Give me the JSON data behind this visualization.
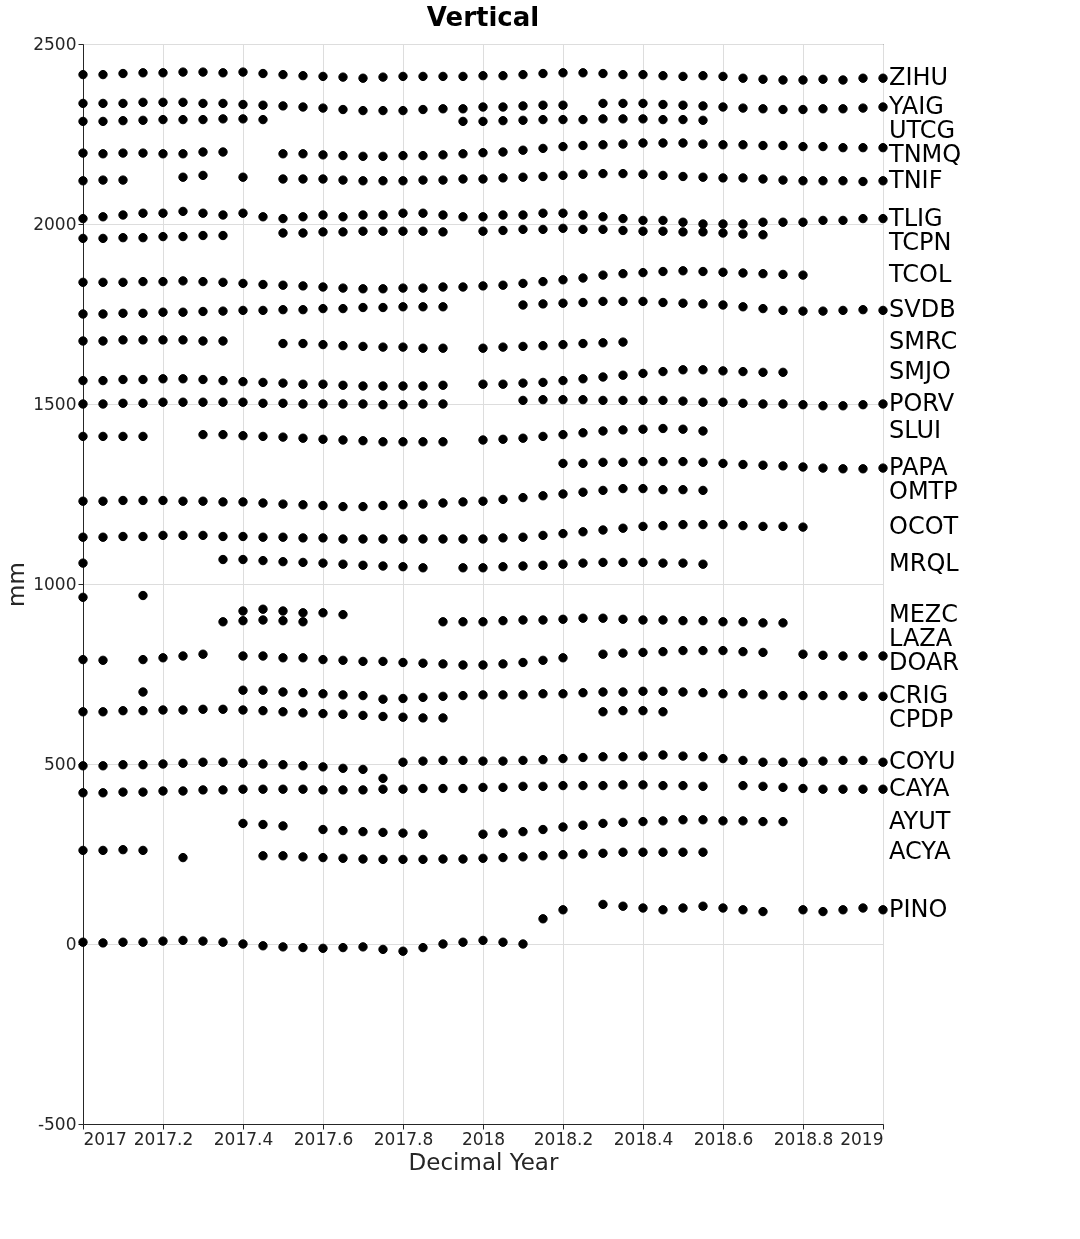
{
  "chart_data": {
    "type": "scatter",
    "title": "Vertical",
    "xlabel": "Decimal Year",
    "ylabel": "mm",
    "marker": "circle",
    "grid": true,
    "xlim": [
      2017,
      2019
    ],
    "xticks": [
      2017,
      2017.2,
      2017.4,
      2017.6,
      2017.8,
      2018,
      2018.2,
      2018.4,
      2018.6,
      2018.8,
      2019
    ],
    "ylim": [
      -500,
      2500
    ],
    "yticks": [
      -500,
      0,
      500,
      1000,
      1500,
      2000,
      2500
    ],
    "x": [
      2017.0,
      2017.05,
      2017.1,
      2017.15,
      2017.2,
      2017.25,
      2017.3,
      2017.35,
      2017.4,
      2017.45,
      2017.5,
      2017.55,
      2017.6,
      2017.65,
      2017.7,
      2017.75,
      2017.8,
      2017.85,
      2017.9,
      2017.95,
      2018.0,
      2018.05,
      2018.1,
      2018.15,
      2018.2,
      2018.25,
      2018.3,
      2018.35,
      2018.4,
      2018.45,
      2018.5,
      2018.55,
      2018.6,
      2018.65,
      2018.7,
      2018.75,
      2018.8,
      2018.85,
      2018.9,
      2018.95,
      2019.0
    ],
    "series": [
      {
        "name": "ZIHU",
        "color": "#000000",
        "values": [
          2415,
          2415,
          2418,
          2420,
          2420,
          2422,
          2422,
          2420,
          2422,
          2418,
          2415,
          2412,
          2410,
          2408,
          2405,
          2408,
          2410,
          2410,
          2410,
          2410,
          2412,
          2412,
          2415,
          2418,
          2420,
          2420,
          2418,
          2415,
          2415,
          2412,
          2410,
          2412,
          2410,
          2405,
          2402,
          2400,
          2400,
          2402,
          2400,
          2405,
          2405
        ]
      },
      {
        "name": "YAIG",
        "color": "#000000",
        "values": [
          2335,
          2335,
          2335,
          2338,
          2338,
          2338,
          2335,
          2335,
          2332,
          2330,
          2328,
          2325,
          2322,
          2318,
          2315,
          2315,
          2315,
          2318,
          2320,
          2320,
          2325,
          2325,
          2328,
          2330,
          2330,
          null,
          2335,
          2335,
          2335,
          2332,
          2330,
          2328,
          2325,
          2322,
          2320,
          2318,
          2318,
          2320,
          2320,
          2322,
          2325
        ]
      },
      {
        "name": "UTCG",
        "color": "#000000",
        "values": [
          2285,
          2285,
          2287,
          2288,
          2290,
          2290,
          2290,
          2292,
          2292,
          2290,
          null,
          null,
          null,
          null,
          null,
          null,
          null,
          null,
          null,
          2285,
          2285,
          2287,
          2288,
          2290,
          2290,
          2290,
          2292,
          2292,
          2292,
          2290,
          2290,
          2288,
          null,
          null,
          null,
          null,
          null,
          null,
          null,
          null,
          null
        ]
      },
      {
        "name": "TNMQ",
        "color": "#000000",
        "values": [
          2197,
          2195,
          2197,
          2197,
          2195,
          2195,
          2200,
          2200,
          null,
          null,
          2195,
          2195,
          2192,
          2190,
          2188,
          2188,
          2190,
          2190,
          2192,
          2195,
          2198,
          2200,
          2205,
          2210,
          2215,
          2218,
          2220,
          2222,
          2225,
          2225,
          2225,
          2222,
          2220,
          2220,
          2218,
          2218,
          2215,
          2215,
          2212,
          2212,
          2212
        ]
      },
      {
        "name": "TNIF",
        "color": "#000000",
        "values": [
          2120,
          2122,
          2122,
          null,
          null,
          2130,
          2135,
          null,
          2130,
          null,
          2125,
          2125,
          2125,
          2122,
          2120,
          2120,
          2120,
          2122,
          2122,
          2125,
          2125,
          2128,
          2130,
          2132,
          2135,
          2138,
          2140,
          2140,
          2138,
          2135,
          2132,
          2130,
          2128,
          2128,
          2125,
          2122,
          2120,
          2120,
          2120,
          2118,
          2120
        ]
      },
      {
        "name": "TLIG",
        "color": "#000000",
        "values": [
          2015,
          2020,
          2025,
          2030,
          2030,
          2035,
          2030,
          2025,
          2030,
          2020,
          2015,
          2020,
          2025,
          2020,
          2025,
          2025,
          2030,
          2030,
          2025,
          2020,
          2020,
          2025,
          2025,
          2030,
          2030,
          2025,
          2020,
          2015,
          2010,
          2010,
          2005,
          2000,
          2000,
          2000,
          2005,
          2005,
          2005,
          2010,
          2010,
          2015,
          2015
        ]
      },
      {
        "name": "TCPN",
        "color": "#000000",
        "values": [
          1960,
          1960,
          1962,
          1962,
          1965,
          1965,
          1968,
          1968,
          null,
          null,
          1975,
          1975,
          1978,
          1978,
          1980,
          1980,
          1980,
          1980,
          1978,
          null,
          1980,
          1982,
          1985,
          1985,
          1988,
          1985,
          1985,
          1982,
          1980,
          1980,
          1978,
          1978,
          1975,
          1972,
          1970,
          null,
          null,
          null,
          null,
          null,
          null
        ]
      },
      {
        "name": "TCOL",
        "color": "#000000",
        "values": [
          1838,
          1838,
          1838,
          1840,
          1840,
          1842,
          1840,
          1838,
          1835,
          1832,
          1830,
          1828,
          1825,
          1822,
          1820,
          1820,
          1822,
          1822,
          1825,
          1825,
          1828,
          1830,
          1835,
          1840,
          1845,
          1850,
          1858,
          1862,
          1865,
          1868,
          1870,
          1868,
          1866,
          1864,
          1862,
          1860,
          1858,
          null,
          null,
          null,
          null
        ]
      },
      {
        "name": "SVDB",
        "color": "#000000",
        "values": [
          1750,
          1750,
          1752,
          1752,
          1755,
          1755,
          1757,
          1758,
          1760,
          1760,
          1762,
          1762,
          1765,
          1765,
          1768,
          1768,
          1770,
          1770,
          1770,
          null,
          null,
          null,
          1775,
          1778,
          1780,
          1782,
          1785,
          1785,
          1785,
          1782,
          1780,
          1778,
          1775,
          1770,
          1765,
          1760,
          1758,
          1758,
          1760,
          1762,
          1760
        ]
      },
      {
        "name": "SMRC",
        "color": "#000000",
        "values": [
          1675,
          1675,
          1678,
          1678,
          1678,
          1678,
          1675,
          1675,
          null,
          null,
          1668,
          1668,
          1665,
          1662,
          1660,
          1658,
          1658,
          1655,
          1655,
          null,
          1655,
          1658,
          1660,
          1662,
          1665,
          1668,
          1670,
          1672,
          null,
          null,
          null,
          null,
          null,
          null,
          null,
          null,
          null,
          null,
          null,
          null,
          null
        ]
      },
      {
        "name": "SMJO",
        "color": "#000000",
        "values": [
          1565,
          1565,
          1568,
          1568,
          1570,
          1570,
          1568,
          1565,
          1562,
          1560,
          1558,
          1555,
          1555,
          1552,
          1550,
          1550,
          1550,
          1550,
          1552,
          null,
          1555,
          1555,
          1558,
          1560,
          1565,
          1570,
          1575,
          1580,
          1585,
          1590,
          1595,
          1595,
          1592,
          1590,
          1588,
          1588,
          null,
          null,
          null,
          null,
          null
        ]
      },
      {
        "name": "PORV",
        "color": "#000000",
        "values": [
          1500,
          1500,
          1502,
          1502,
          1505,
          1505,
          1505,
          1505,
          1505,
          1502,
          1502,
          1500,
          1500,
          1500,
          1500,
          1498,
          1498,
          1500,
          1500,
          null,
          null,
          null,
          1510,
          1512,
          1512,
          1512,
          1510,
          1510,
          1510,
          1510,
          1508,
          1505,
          1505,
          1502,
          1500,
          1500,
          1498,
          1495,
          1495,
          1498,
          1500
        ]
      },
      {
        "name": "SLUI",
        "color": "#000000",
        "values": [
          1410,
          1410,
          1410,
          1410,
          null,
          null,
          1415,
          1415,
          1412,
          1410,
          1408,
          1405,
          1402,
          1400,
          1398,
          1395,
          1395,
          1395,
          1395,
          null,
          1400,
          1402,
          1405,
          1410,
          1415,
          1420,
          1425,
          1428,
          1430,
          1432,
          1430,
          1425,
          null,
          null,
          null,
          null,
          null,
          null,
          null,
          null,
          null
        ]
      },
      {
        "name": "PAPA",
        "color": "#000000",
        "values": [
          null,
          null,
          null,
          null,
          null,
          null,
          null,
          null,
          null,
          null,
          null,
          null,
          null,
          null,
          null,
          null,
          null,
          null,
          null,
          null,
          null,
          null,
          null,
          null,
          1335,
          1335,
          1338,
          1338,
          1340,
          1340,
          1340,
          1338,
          1335,
          1332,
          1330,
          1328,
          1325,
          1322,
          1320,
          1320,
          1322
        ]
      },
      {
        "name": "OMTP",
        "color": "#000000",
        "values": [
          1230,
          1230,
          1232,
          1232,
          1232,
          1230,
          1230,
          1228,
          1228,
          1225,
          1222,
          1220,
          1218,
          1215,
          1215,
          1218,
          1220,
          1222,
          1225,
          1228,
          1230,
          1235,
          1240,
          1245,
          1250,
          1255,
          1260,
          1265,
          1265,
          1262,
          1262,
          1260,
          null,
          null,
          null,
          null,
          null,
          null,
          null,
          null,
          null
        ]
      },
      {
        "name": "OCOT",
        "color": "#000000",
        "values": [
          1130,
          1130,
          1132,
          1132,
          1135,
          1135,
          1135,
          1132,
          1132,
          1130,
          1130,
          1128,
          1128,
          1125,
          1125,
          1125,
          1125,
          1125,
          1125,
          1125,
          1125,
          1128,
          1130,
          1135,
          1140,
          1145,
          1150,
          1155,
          1160,
          1162,
          1165,
          1165,
          1165,
          1162,
          1160,
          1160,
          1158,
          null,
          null,
          null,
          null
        ]
      },
      {
        "name": "MRQL",
        "color": "#000000",
        "values": [
          1058,
          null,
          null,
          null,
          null,
          null,
          null,
          1068,
          1068,
          1065,
          1062,
          1060,
          1058,
          1055,
          1052,
          1050,
          1048,
          1045,
          null,
          1045,
          1045,
          1048,
          1050,
          1052,
          1055,
          1058,
          1060,
          1060,
          1060,
          1058,
          1058,
          1055,
          null,
          null,
          null,
          null,
          null,
          null,
          null,
          null,
          null
        ]
      },
      {
        "name": "MEZC",
        "color": "#000000",
        "values": [
          963,
          null,
          null,
          968,
          null,
          null,
          null,
          null,
          925,
          930,
          925,
          920,
          920,
          915,
          null,
          null,
          null,
          null,
          null,
          null,
          null,
          null,
          null,
          null,
          null,
          null,
          null,
          null,
          null,
          null,
          null,
          null,
          null,
          null,
          null,
          null,
          null,
          null,
          null,
          null,
          null
        ]
      },
      {
        "name": "LAZA",
        "color": "#000000",
        "values": [
          null,
          null,
          null,
          null,
          null,
          null,
          null,
          895,
          898,
          900,
          898,
          895,
          null,
          null,
          null,
          null,
          null,
          null,
          895,
          895,
          895,
          898,
          900,
          900,
          902,
          905,
          905,
          902,
          900,
          900,
          898,
          898,
          895,
          895,
          892,
          892,
          null,
          null,
          null,
          null,
          null
        ]
      },
      {
        "name": "DOAR",
        "color": "#000000",
        "values": [
          790,
          788,
          null,
          790,
          795,
          800,
          805,
          null,
          800,
          800,
          795,
          795,
          790,
          788,
          785,
          785,
          782,
          780,
          778,
          775,
          775,
          778,
          782,
          788,
          795,
          null,
          805,
          808,
          810,
          812,
          815,
          815,
          815,
          812,
          810,
          null,
          805,
          802,
          800,
          800,
          800
        ]
      },
      {
        "name": "CRIG",
        "color": "#000000",
        "values": [
          null,
          null,
          null,
          700,
          null,
          null,
          null,
          null,
          705,
          705,
          700,
          698,
          695,
          692,
          690,
          680,
          682,
          685,
          688,
          690,
          692,
          692,
          692,
          695,
          695,
          698,
          700,
          700,
          702,
          702,
          700,
          698,
          695,
          695,
          692,
          690,
          690,
          690,
          690,
          688,
          688
        ]
      },
      {
        "name": "CPDP",
        "color": "#000000",
        "values": [
          645,
          645,
          648,
          648,
          650,
          650,
          652,
          652,
          650,
          648,
          645,
          642,
          640,
          638,
          635,
          632,
          630,
          628,
          628,
          null,
          null,
          null,
          null,
          null,
          null,
          null,
          645,
          648,
          648,
          645,
          null,
          null,
          null,
          null,
          null,
          null,
          null,
          null,
          null,
          null,
          null
        ]
      },
      {
        "name": "COYU",
        "color": "#000000",
        "values": [
          495,
          495,
          498,
          498,
          500,
          502,
          505,
          505,
          502,
          500,
          498,
          495,
          492,
          488,
          485,
          460,
          505,
          508,
          510,
          510,
          508,
          508,
          510,
          512,
          515,
          518,
          520,
          520,
          522,
          525,
          522,
          520,
          515,
          510,
          505,
          505,
          505,
          508,
          510,
          510,
          505
        ]
      },
      {
        "name": "CAYA",
        "color": "#000000",
        "values": [
          420,
          420,
          422,
          422,
          425,
          425,
          428,
          428,
          430,
          430,
          430,
          430,
          428,
          428,
          428,
          430,
          430,
          432,
          432,
          432,
          435,
          435,
          438,
          438,
          440,
          440,
          440,
          442,
          442,
          440,
          440,
          438,
          null,
          440,
          438,
          435,
          432,
          430,
          430,
          430,
          430
        ]
      },
      {
        "name": "AYUT",
        "color": "#000000",
        "values": [
          null,
          null,
          null,
          null,
          null,
          null,
          null,
          null,
          335,
          332,
          328,
          null,
          318,
          315,
          312,
          310,
          308,
          305,
          null,
          null,
          305,
          308,
          312,
          318,
          325,
          330,
          335,
          338,
          340,
          342,
          345,
          345,
          342,
          342,
          340,
          340,
          null,
          null,
          null,
          null,
          null
        ]
      },
      {
        "name": "ACYA",
        "color": "#000000",
        "values": [
          260,
          260,
          262,
          260,
          null,
          240,
          null,
          null,
          null,
          245,
          245,
          242,
          240,
          238,
          236,
          235,
          235,
          235,
          236,
          236,
          238,
          240,
          242,
          245,
          248,
          250,
          252,
          255,
          255,
          255,
          255,
          255,
          null,
          null,
          null,
          null,
          null,
          null,
          null,
          null,
          null
        ]
      },
      {
        "name": "PINO",
        "color": "#000000",
        "values": [
          5,
          3,
          5,
          5,
          8,
          10,
          8,
          5,
          0,
          -5,
          -8,
          -10,
          -12,
          -10,
          -8,
          -15,
          -20,
          -10,
          0,
          5,
          10,
          5,
          0,
          70,
          95,
          null,
          110,
          105,
          100,
          95,
          100,
          105,
          100,
          95,
          90,
          null,
          95,
          90,
          95,
          100,
          95
        ]
      }
    ]
  }
}
